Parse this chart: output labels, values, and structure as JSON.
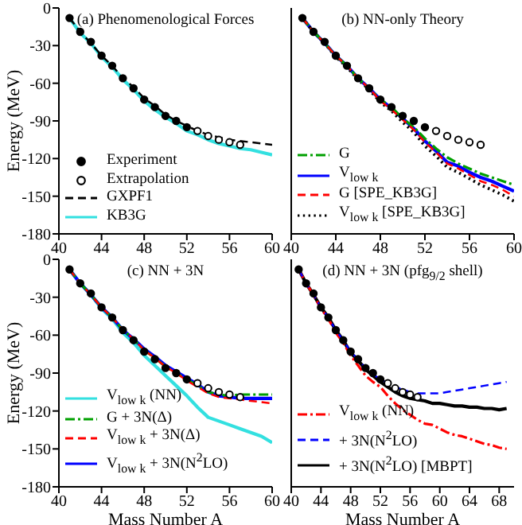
{
  "chart_data": [
    {
      "type": "line",
      "title": "(a) Phenomenological Forces",
      "ylabel": "Energy (MeV)",
      "xlim": [
        40,
        60
      ],
      "xticks": [
        40,
        44,
        48,
        52,
        56,
        60
      ],
      "ylim": [
        -180,
        0
      ],
      "yticks": [
        -180,
        -150,
        -120,
        -90,
        -60,
        -30,
        0
      ],
      "legend": "bottom left",
      "series": [
        {
          "name": "Experiment",
          "type": "scatter",
          "marker": "circle",
          "color": "#000000",
          "x": [
            41,
            42,
            43,
            44,
            45,
            46,
            47,
            48,
            49,
            50,
            51,
            52
          ],
          "values": [
            -8,
            -19,
            -27,
            -38,
            -46,
            -56,
            -64,
            -73,
            -79,
            -86,
            -90,
            -95
          ]
        },
        {
          "name": "Extrapolation",
          "type": "scatter",
          "marker": "circle",
          "color": "#ffffff",
          "x": [
            53,
            54,
            55,
            56,
            57
          ],
          "values": [
            -98,
            -102,
            -105,
            -107,
            -109
          ]
        },
        {
          "name": "GXPF1",
          "line_style": "dashed",
          "color": "#000000",
          "x": [
            41,
            42,
            43,
            44,
            45,
            46,
            47,
            48,
            49,
            50,
            51,
            52,
            53,
            54,
            55,
            56,
            57,
            58,
            59,
            60
          ],
          "values": [
            -8,
            -19,
            -28,
            -38,
            -46,
            -56,
            -63,
            -72,
            -78,
            -85,
            -90,
            -94,
            -98,
            -101,
            -103,
            -105,
            -106,
            -107,
            -108,
            -109
          ]
        },
        {
          "name": "KB3G",
          "line_style": "solid",
          "color": "#33e0e0",
          "x": [
            41,
            42,
            43,
            44,
            45,
            46,
            47,
            48,
            49,
            50,
            51,
            52,
            53,
            54,
            55,
            56,
            57,
            58,
            59,
            60
          ],
          "values": [
            -8,
            -20,
            -28,
            -39,
            -47,
            -57,
            -65,
            -74,
            -81,
            -87,
            -92,
            -98,
            -101,
            -105,
            -108,
            -110,
            -112,
            -113,
            -115,
            -117
          ]
        }
      ]
    },
    {
      "type": "line",
      "title": "(b) NN-only Theory",
      "xlim": [
        40,
        60
      ],
      "xticks": [
        40,
        44,
        48,
        52,
        56,
        60
      ],
      "ylim": [
        -180,
        0
      ],
      "yticks": [
        -180,
        -150,
        -120,
        -90,
        -60,
        -30,
        0
      ],
      "tick_labels": "x",
      "legend": "bottom left",
      "series": [
        {
          "type": "scatter",
          "marker": "circle",
          "color": "#000000",
          "x": [
            41,
            42,
            43,
            44,
            45,
            46,
            47,
            48,
            49,
            50,
            51,
            52
          ],
          "values": [
            -8,
            -19,
            -27,
            -38,
            -46,
            -56,
            -64,
            -73,
            -79,
            -86,
            -90,
            -95
          ]
        },
        {
          "type": "scatter",
          "marker": "circle",
          "color": "#ffffff",
          "x": [
            53,
            54,
            55,
            56,
            57
          ],
          "values": [
            -98,
            -102,
            -105,
            -107,
            -109
          ]
        },
        {
          "name": "G",
          "line_style": "dashdot",
          "color": "#00a000",
          "x": [
            41,
            42,
            43,
            44,
            45,
            46,
            47,
            48,
            49,
            50,
            51,
            52,
            53,
            54,
            55,
            56,
            57,
            58,
            59,
            60
          ],
          "values": [
            -8,
            -19,
            -28,
            -38,
            -46,
            -56,
            -64,
            -73,
            -79,
            -88,
            -95,
            -104,
            -112,
            -119,
            -124,
            -128,
            -132,
            -135,
            -138,
            -141
          ]
        },
        {
          "name": "V$_{low k}$",
          "line_style": "solid",
          "color": "#0000ff",
          "x": [
            41,
            42,
            43,
            44,
            45,
            46,
            47,
            48,
            49,
            50,
            51,
            52,
            53,
            54,
            55,
            56,
            57,
            58,
            59,
            60
          ],
          "values": [
            -8,
            -19,
            -28,
            -38,
            -46,
            -56,
            -64,
            -73,
            -80,
            -88,
            -96,
            -106,
            -114,
            -123,
            -126,
            -131,
            -135,
            -138,
            -142,
            -146
          ]
        },
        {
          "name": "G [SPE_KB3G]",
          "line_style": "dashed",
          "color": "#ff0000",
          "x": [
            41,
            42,
            43,
            44,
            45,
            46,
            47,
            48,
            49,
            50,
            51,
            52,
            53,
            54,
            55,
            56,
            57,
            58,
            59,
            60
          ],
          "values": [
            -8,
            -19,
            -28,
            -38,
            -46,
            -56,
            -64,
            -74,
            -81,
            -89,
            -97,
            -107,
            -115,
            -124,
            -128,
            -133,
            -138,
            -141,
            -145,
            -150
          ]
        },
        {
          "name": "V$_{low k}$ [SPE_KB3G]",
          "line_style": "dotted",
          "color": "#000000",
          "x": [
            41,
            42,
            43,
            44,
            45,
            46,
            47,
            48,
            49,
            50,
            51,
            52,
            53,
            54,
            55,
            56,
            57,
            58,
            59,
            60
          ],
          "values": [
            -8,
            -19,
            -28,
            -39,
            -47,
            -57,
            -65,
            -75,
            -82,
            -91,
            -99,
            -110,
            -118,
            -127,
            -131,
            -136,
            -141,
            -145,
            -149,
            -154
          ]
        }
      ]
    },
    {
      "type": "line",
      "title": "(c) NN + 3N",
      "xlabel": "Mass Number A",
      "ylabel": "Energy (MeV)",
      "xlim": [
        40,
        60
      ],
      "xticks": [
        40,
        44,
        48,
        52,
        56,
        60
      ],
      "ylim": [
        -180,
        0
      ],
      "yticks": [
        -180,
        -150,
        -120,
        -90,
        -60,
        -30,
        0
      ],
      "legend": "bottom left",
      "series": [
        {
          "type": "scatter",
          "marker": "circle",
          "color": "#000000",
          "x": [
            41,
            42,
            43,
            44,
            45,
            46,
            47,
            48,
            49,
            50,
            51,
            52
          ],
          "values": [
            -8,
            -19,
            -27,
            -38,
            -46,
            -56,
            -64,
            -73,
            -79,
            -86,
            -90,
            -95
          ]
        },
        {
          "type": "scatter",
          "marker": "circle",
          "color": "#ffffff",
          "x": [
            53,
            54,
            55,
            56,
            57
          ],
          "values": [
            -98,
            -102,
            -105,
            -107,
            -109
          ]
        },
        {
          "name": "V$_{low k}$ (NN)",
          "line_style": "solid",
          "color": "#33e0e0",
          "x": [
            41,
            42,
            43,
            44,
            45,
            46,
            47,
            48,
            49,
            50,
            51,
            52,
            53,
            54,
            55,
            56,
            57,
            58,
            59,
            60
          ],
          "values": [
            -8,
            -19,
            -28,
            -39,
            -47,
            -58,
            -66,
            -76,
            -84,
            -92,
            -100,
            -108,
            -117,
            -125,
            -128,
            -131,
            -134,
            -137,
            -140,
            -145
          ]
        },
        {
          "name": "G + 3N(Δ)",
          "line_style": "dashdot",
          "color": "#00a000",
          "x": [
            41,
            42,
            43,
            44,
            45,
            46,
            47,
            48,
            49,
            50,
            51,
            52,
            53,
            54,
            55,
            56,
            57,
            58,
            59,
            60
          ],
          "values": [
            -8,
            -19,
            -28,
            -38,
            -46,
            -56,
            -63,
            -72,
            -78,
            -85,
            -90,
            -95,
            -100,
            -105,
            -107,
            -108,
            -107,
            -107,
            -107,
            -107
          ]
        },
        {
          "name": "V$_{low k}$ + 3N(Δ)",
          "line_style": "dashed",
          "color": "#ff0000",
          "x": [
            41,
            42,
            43,
            44,
            45,
            46,
            47,
            48,
            49,
            50,
            51,
            52,
            53,
            54,
            55,
            56,
            57,
            58,
            59,
            60
          ],
          "values": [
            -8,
            -19,
            -28,
            -38,
            -46,
            -56,
            -63,
            -72,
            -78,
            -85,
            -90,
            -96,
            -101,
            -106,
            -109,
            -110,
            -111,
            -112,
            -113,
            -114
          ]
        },
        {
          "name": "V$_{low k}$ + 3N(N$^{2}$LO)",
          "line_style": "solid",
          "color": "#0000ff",
          "x": [
            41,
            42,
            43,
            44,
            45,
            46,
            47,
            48,
            49,
            50,
            51,
            52,
            53,
            54,
            55,
            56,
            57,
            58,
            59,
            60
          ],
          "values": [
            -8,
            -19,
            -28,
            -38,
            -46,
            -56,
            -63,
            -71,
            -77,
            -84,
            -89,
            -94,
            -99,
            -105,
            -108,
            -109,
            -110,
            -110,
            -110,
            -110
          ]
        }
      ]
    },
    {
      "type": "line",
      "title": "(d) NN + 3N (pfg$_{9/2}$ shell)",
      "xlabel": "Mass Number A",
      "xlim": [
        40,
        70
      ],
      "xticks": [
        40,
        44,
        48,
        52,
        56,
        60,
        64,
        68
      ],
      "ylim": [
        -180,
        0
      ],
      "yticks": [
        -180,
        -150,
        -120,
        -90,
        -60,
        -30,
        0
      ],
      "tick_labels": "x",
      "legend": "bottom left",
      "series": [
        {
          "type": "scatter",
          "marker": "circle",
          "color": "#000000",
          "x": [
            41,
            42,
            43,
            44,
            45,
            46,
            47,
            48,
            49,
            50,
            51,
            52
          ],
          "values": [
            -8,
            -19,
            -27,
            -38,
            -46,
            -56,
            -64,
            -73,
            -79,
            -86,
            -90,
            -95
          ]
        },
        {
          "type": "scatter",
          "marker": "circle",
          "color": "#ffffff",
          "x": [
            53,
            54,
            55,
            56,
            57
          ],
          "values": [
            -98,
            -102,
            -105,
            -107,
            -109
          ]
        },
        {
          "name": "V$_{low k}$ (NN)",
          "line_style": "dashdot",
          "color": "#ff0000",
          "x": [
            41,
            42,
            43,
            44,
            45,
            46,
            47,
            48,
            49,
            50,
            51,
            52,
            53,
            54,
            55,
            56,
            57,
            58,
            59,
            60,
            61,
            62,
            63,
            64,
            65,
            66,
            67,
            68,
            69
          ],
          "values": [
            -8,
            -19,
            -28,
            -39,
            -47,
            -58,
            -66,
            -76,
            -84,
            -92,
            -97,
            -101,
            -108,
            -114,
            -119,
            -123,
            -127,
            -130,
            -131,
            -134,
            -137,
            -139,
            -140,
            -142,
            -144,
            -146,
            -147,
            -149,
            -150
          ]
        },
        {
          "name": "+ 3N(N$^{2}$LO)",
          "line_style": "dashed",
          "color": "#0000ff",
          "x": [
            41,
            42,
            43,
            44,
            45,
            46,
            47,
            48,
            49,
            50,
            51,
            52,
            53,
            54,
            55,
            56,
            57,
            58,
            59,
            60,
            61,
            62,
            63,
            64,
            65,
            66,
            67,
            68,
            69
          ],
          "values": [
            -8,
            -19,
            -28,
            -38,
            -46,
            -56,
            -64,
            -73,
            -79,
            -86,
            -91,
            -95,
            -98,
            -101,
            -103,
            -105,
            -106,
            -106,
            -106,
            -106,
            -105,
            -104,
            -103,
            -102,
            -101,
            -100,
            -99,
            -98,
            -97
          ]
        },
        {
          "name": "+ 3N(N$^{2}$LO) [MBPT]",
          "line_style": "solid",
          "color": "#000000",
          "x": [
            41,
            42,
            43,
            44,
            45,
            46,
            47,
            48,
            49,
            50,
            51,
            52,
            53,
            54,
            55,
            56,
            57,
            58,
            59,
            60,
            61,
            62,
            63,
            64,
            65,
            66,
            67,
            68,
            69
          ],
          "values": [
            -8,
            -19,
            -28,
            -38,
            -46,
            -56,
            -64,
            -74,
            -80,
            -87,
            -92,
            -97,
            -101,
            -105,
            -108,
            -110,
            -111,
            -112,
            -114,
            -114,
            -115,
            -116,
            -116,
            -117,
            -117,
            -118,
            -118,
            -119,
            -118
          ]
        }
      ]
    }
  ]
}
